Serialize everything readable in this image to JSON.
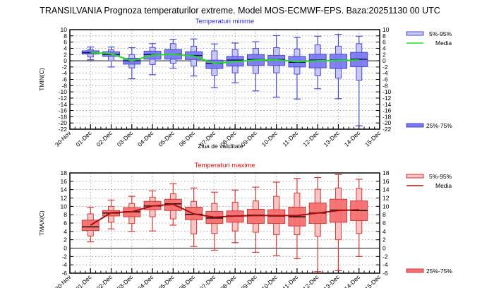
{
  "title": "TRANSILVANIA  Prognoza temperaturilor extreme.  Model MOS-ECMWF-EPS. Baza:20251130 00 UTC",
  "chart_data": [
    {
      "type": "boxplot",
      "title": "Temperaturi minime",
      "title_color": "#2a2ad8",
      "xlabel": "Ziua de validitate",
      "ylabel": "TMIN(C)",
      "ylim": [
        -22,
        10
      ],
      "ytick_step": 2,
      "grid": true,
      "x_tick_labels": [
        "30-Nov",
        "01-Dec",
        "02-Dec",
        "03-Dec",
        "04-Dec",
        "05-Dec",
        "06-Dec",
        "07-Dec",
        "08-Dec",
        "09-Dec",
        "10-Dec",
        "11-Dec",
        "12-Dec",
        "13-Dec",
        "14-Dec",
        "15-Dec"
      ],
      "categories": [
        "01-Dec",
        "02-Dec",
        "03-Dec",
        "04-Dec",
        "05-Dec",
        "06-Dec",
        "07-Dec",
        "08-Dec",
        "09-Dec",
        "10-Dec",
        "11-Dec",
        "12-Dec",
        "13-Dec",
        "14-Dec"
      ],
      "colors": {
        "outer": "#c8c8f4",
        "inner": "#7b7bf0",
        "stroke": "#4a4ad0",
        "mean": "#22dd22",
        "median": "#111166"
      },
      "legend": {
        "placement": "right",
        "outer_label": "5%-95%",
        "mean_label": "Media",
        "inner_label": "25%-75%"
      },
      "series": {
        "min": [
          0.3,
          -2.0,
          -5.8,
          -4.5,
          -2.4,
          -4.9,
          -8.7,
          -7.1,
          -9.7,
          -11.7,
          -12.3,
          -9.0,
          -12.2,
          -20.9
        ],
        "p5": [
          1.2,
          0.0,
          -2.3,
          -1.2,
          -0.8,
          -1.7,
          -4.7,
          -3.9,
          -4.1,
          -3.9,
          -4.3,
          -4.8,
          -5.6,
          -6.3
        ],
        "p25": [
          2.2,
          1.4,
          -1.1,
          0.5,
          0.5,
          0.4,
          -2.5,
          -1.7,
          -1.5,
          -1.5,
          -2.0,
          -2.3,
          -2.5,
          -1.9
        ],
        "median": [
          2.6,
          2.0,
          0.0,
          2.0,
          2.1,
          1.7,
          -0.9,
          0.2,
          0.4,
          0.4,
          -0.5,
          0.2,
          0.2,
          0.5
        ],
        "p75": [
          3.2,
          2.9,
          0.8,
          3.1,
          3.6,
          2.9,
          0.2,
          1.4,
          2.0,
          1.7,
          1.4,
          2.1,
          2.1,
          2.7
        ],
        "p95": [
          3.6,
          3.5,
          2.0,
          4.3,
          5.5,
          4.7,
          3.2,
          3.6,
          4.0,
          4.2,
          3.8,
          5.1,
          4.7,
          5.5
        ],
        "max": [
          4.4,
          4.4,
          4.2,
          5.5,
          6.9,
          7.0,
          5.4,
          5.7,
          6.1,
          8.1,
          7.5,
          7.9,
          8.5,
          7.9
        ],
        "mean": [
          2.7,
          2.2,
          0.0,
          1.8,
          2.1,
          1.5,
          -0.9,
          -0.3,
          0.2,
          0.3,
          -0.3,
          0.0,
          0.1,
          0.2
        ]
      }
    },
    {
      "type": "boxplot",
      "title": "Temperaturi maxime",
      "title_color": "#e01010",
      "xlabel": "",
      "ylabel": "TMAX(C)",
      "ylim": [
        -6,
        18
      ],
      "ytick_step": 2,
      "grid": true,
      "x_tick_labels": [
        "30-Nov",
        "01-Dec",
        "02-Dec",
        "03-Dec",
        "04-Dec",
        "05-Dec",
        "06-Dec",
        "07-Dec",
        "08-Dec",
        "09-Dec",
        "10-Dec",
        "11-Dec",
        "12-Dec",
        "13-Dec",
        "14-Dec",
        "15-Dec"
      ],
      "categories": [
        "01-Dec",
        "02-Dec",
        "03-Dec",
        "04-Dec",
        "05-Dec",
        "06-Dec",
        "07-Dec",
        "08-Dec",
        "09-Dec",
        "10-Dec",
        "11-Dec",
        "12-Dec",
        "13-Dec",
        "14-Dec"
      ],
      "colors": {
        "outer": "#f8c4c4",
        "inner": "#f47070",
        "stroke": "#d23a3a",
        "mean": "#a81010",
        "median": "#1a0000"
      },
      "legend": {
        "placement": "right",
        "outer_label": "5%-95%",
        "mean_label": "Media",
        "inner_label": "25%-75%"
      },
      "series": {
        "min": [
          1.5,
          4.6,
          4.0,
          4.1,
          5.5,
          0.4,
          -0.5,
          1.3,
          -1.0,
          -1.8,
          -2.5,
          -5.6,
          -5.4,
          -2.0
        ],
        "p5": [
          2.9,
          6.2,
          5.9,
          7.5,
          7.0,
          3.4,
          3.5,
          4.1,
          3.8,
          3.2,
          3.2,
          2.8,
          2.0,
          3.5
        ],
        "p25": [
          4.2,
          7.7,
          7.5,
          9.2,
          9.0,
          6.8,
          5.9,
          6.2,
          5.9,
          5.9,
          5.3,
          5.9,
          6.2,
          6.6
        ],
        "median": [
          5.1,
          8.4,
          8.7,
          10.1,
          10.6,
          8.1,
          7.2,
          7.7,
          7.9,
          7.7,
          7.5,
          8.4,
          9.1,
          9.0
        ],
        "p75": [
          6.7,
          9.0,
          9.7,
          11.2,
          11.7,
          9.8,
          8.8,
          8.9,
          9.3,
          9.2,
          9.8,
          10.8,
          11.7,
          11.3
        ],
        "p95": [
          8.2,
          10.0,
          10.7,
          12.2,
          13.0,
          11.2,
          10.7,
          11.0,
          11.3,
          12.4,
          13.2,
          14.1,
          14.4,
          14.3
        ],
        "max": [
          9.8,
          11.5,
          12.4,
          13.7,
          15.4,
          14.4,
          13.4,
          13.9,
          14.6,
          15.8,
          16.7,
          16.9,
          17.6,
          16.5
        ],
        "mean": [
          5.5,
          8.5,
          8.7,
          10.1,
          10.5,
          8.2,
          7.4,
          7.7,
          7.8,
          7.8,
          7.8,
          8.4,
          9.0,
          9.2
        ]
      }
    }
  ]
}
